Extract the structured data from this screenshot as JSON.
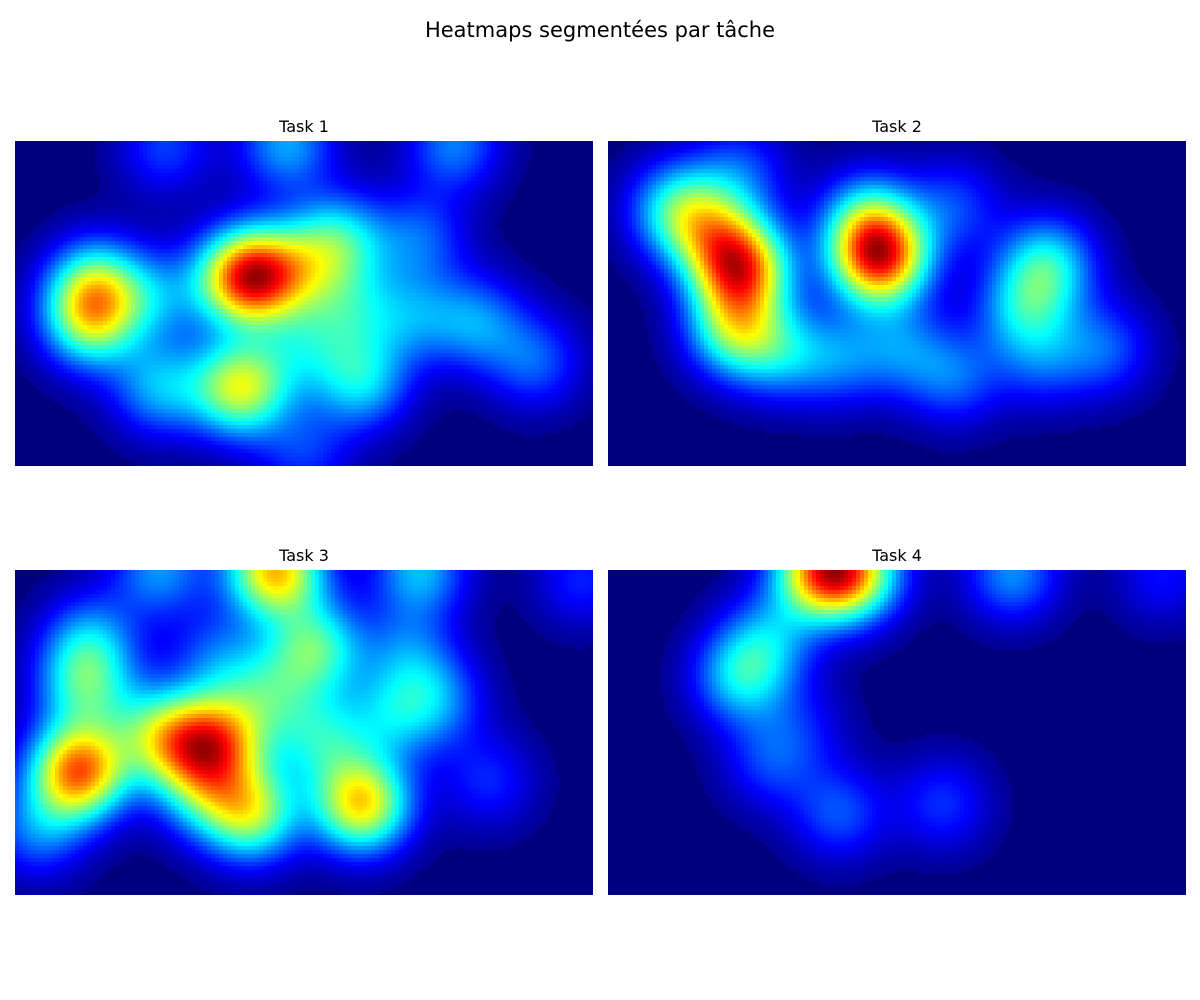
{
  "figure": {
    "title": "Heatmaps segmentées par tâche"
  },
  "colormap": "jet",
  "background_color": "#00007f",
  "chart_data": [
    {
      "type": "heatmap",
      "title": "Task 1",
      "axes_visible": false,
      "x_range": [
        0,
        1
      ],
      "y_range": [
        0,
        1
      ],
      "hotspots": [
        {
          "x": 0.4,
          "y": 0.42,
          "intensity": 1.0
        },
        {
          "x": 0.14,
          "y": 0.45,
          "intensity": 0.55
        },
        {
          "x": 0.13,
          "y": 0.56,
          "intensity": 0.5
        },
        {
          "x": 0.39,
          "y": 0.76,
          "intensity": 0.7
        },
        {
          "x": 0.56,
          "y": 0.31,
          "intensity": 0.45
        },
        {
          "x": 0.6,
          "y": 0.74,
          "intensity": 0.4
        },
        {
          "x": 0.25,
          "y": 0.76,
          "intensity": 0.35
        },
        {
          "x": 0.48,
          "y": 0.4,
          "intensity": 0.4
        },
        {
          "x": 0.58,
          "y": 0.52,
          "intensity": 0.3
        },
        {
          "x": 0.7,
          "y": 0.3,
          "intensity": 0.25
        },
        {
          "x": 0.8,
          "y": 0.56,
          "intensity": 0.3
        },
        {
          "x": 0.69,
          "y": 0.54,
          "intensity": 0.25
        },
        {
          "x": 0.9,
          "y": 0.68,
          "intensity": 0.25
        },
        {
          "x": 0.47,
          "y": 0.01,
          "intensity": 0.35
        },
        {
          "x": 0.76,
          "y": 0.01,
          "intensity": 0.3
        },
        {
          "x": 0.26,
          "y": 0.02,
          "intensity": 0.22
        },
        {
          "x": 0.5,
          "y": 0.64,
          "intensity": 0.25
        },
        {
          "x": 0.25,
          "y": 0.48,
          "intensity": 0.25
        },
        {
          "x": 0.5,
          "y": 0.96,
          "intensity": 0.2
        }
      ]
    },
    {
      "type": "heatmap",
      "title": "Task 2",
      "axes_visible": false,
      "x_range": [
        0,
        1
      ],
      "y_range": [
        0,
        1
      ],
      "hotspots": [
        {
          "x": 0.47,
          "y": 0.36,
          "intensity": 1.0
        },
        {
          "x": 0.23,
          "y": 0.39,
          "intensity": 0.9
        },
        {
          "x": 0.22,
          "y": 0.58,
          "intensity": 0.55
        },
        {
          "x": 0.12,
          "y": 0.21,
          "intensity": 0.45
        },
        {
          "x": 0.18,
          "y": 0.28,
          "intensity": 0.4
        },
        {
          "x": 0.45,
          "y": 0.24,
          "intensity": 0.4
        },
        {
          "x": 0.76,
          "y": 0.38,
          "intensity": 0.45
        },
        {
          "x": 0.72,
          "y": 0.52,
          "intensity": 0.35
        },
        {
          "x": 0.3,
          "y": 0.65,
          "intensity": 0.3
        },
        {
          "x": 0.4,
          "y": 0.67,
          "intensity": 0.25
        },
        {
          "x": 0.51,
          "y": 0.64,
          "intensity": 0.25
        },
        {
          "x": 0.6,
          "y": 0.73,
          "intensity": 0.25
        },
        {
          "x": 0.86,
          "y": 0.64,
          "intensity": 0.25
        },
        {
          "x": 0.23,
          "y": 0.09,
          "intensity": 0.22
        },
        {
          "x": 0.6,
          "y": 0.2,
          "intensity": 0.22
        },
        {
          "x": 0.75,
          "y": 0.68,
          "intensity": 0.2
        }
      ]
    },
    {
      "type": "heatmap",
      "title": "Task 3",
      "axes_visible": false,
      "x_range": [
        0,
        1
      ],
      "y_range": [
        0,
        1
      ],
      "hotspots": [
        {
          "x": 0.11,
          "y": 0.62,
          "intensity": 1.0
        },
        {
          "x": 0.45,
          "y": 0.0,
          "intensity": 0.9
        },
        {
          "x": 0.6,
          "y": 0.72,
          "intensity": 0.85
        },
        {
          "x": 0.41,
          "y": 0.75,
          "intensity": 0.65
        },
        {
          "x": 0.36,
          "y": 0.52,
          "intensity": 0.6
        },
        {
          "x": 0.3,
          "y": 0.54,
          "intensity": 0.5
        },
        {
          "x": 0.52,
          "y": 0.24,
          "intensity": 0.55
        },
        {
          "x": 0.12,
          "y": 0.36,
          "intensity": 0.45
        },
        {
          "x": 0.13,
          "y": 0.22,
          "intensity": 0.35
        },
        {
          "x": 0.24,
          "y": 0.5,
          "intensity": 0.4
        },
        {
          "x": 0.33,
          "y": 0.68,
          "intensity": 0.4
        },
        {
          "x": 0.53,
          "y": 0.52,
          "intensity": 0.4
        },
        {
          "x": 0.44,
          "y": 0.38,
          "intensity": 0.35
        },
        {
          "x": 0.65,
          "y": 0.45,
          "intensity": 0.3
        },
        {
          "x": 0.73,
          "y": 0.4,
          "intensity": 0.3
        },
        {
          "x": 0.68,
          "y": 0.25,
          "intensity": 0.25
        },
        {
          "x": 0.35,
          "y": 0.27,
          "intensity": 0.25
        },
        {
          "x": 0.7,
          "y": 0.0,
          "intensity": 0.4
        },
        {
          "x": 0.25,
          "y": 0.0,
          "intensity": 0.35
        },
        {
          "x": 0.82,
          "y": 0.65,
          "intensity": 0.2
        },
        {
          "x": 0.98,
          "y": 0.03,
          "intensity": 0.2
        },
        {
          "x": 0.04,
          "y": 0.8,
          "intensity": 0.3
        }
      ]
    },
    {
      "type": "heatmap",
      "title": "Task 4",
      "axes_visible": false,
      "x_range": [
        0,
        1
      ],
      "y_range": [
        0,
        1
      ],
      "hotspots": [
        {
          "x": 0.37,
          "y": 0.0,
          "intensity": 1.0
        },
        {
          "x": 0.43,
          "y": 0.01,
          "intensity": 0.7
        },
        {
          "x": 0.23,
          "y": 0.33,
          "intensity": 0.5
        },
        {
          "x": 0.28,
          "y": 0.21,
          "intensity": 0.35
        },
        {
          "x": 0.7,
          "y": 0.01,
          "intensity": 0.4
        },
        {
          "x": 0.28,
          "y": 0.59,
          "intensity": 0.25
        },
        {
          "x": 0.4,
          "y": 0.75,
          "intensity": 0.3
        },
        {
          "x": 0.58,
          "y": 0.72,
          "intensity": 0.25
        },
        {
          "x": 0.96,
          "y": 0.02,
          "intensity": 0.2
        },
        {
          "x": 0.34,
          "y": 0.48,
          "intensity": 0.15
        }
      ]
    }
  ]
}
